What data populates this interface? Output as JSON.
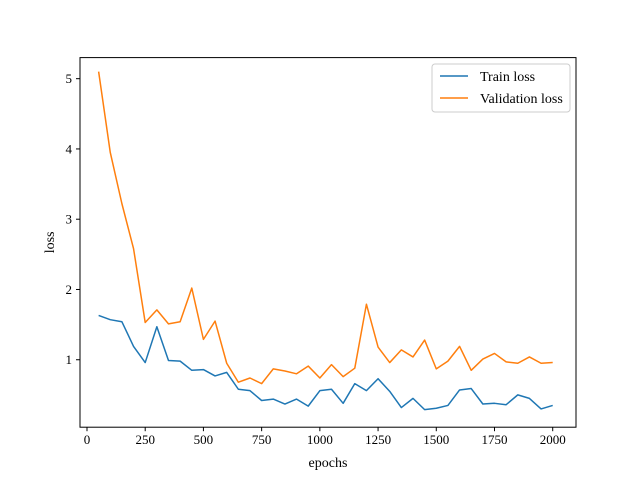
{
  "chart_data": {
    "type": "line",
    "xlabel": "epochs",
    "ylabel": "loss",
    "xlim": [
      -30,
      2100
    ],
    "ylim": [
      0.04,
      5.3
    ],
    "x_ticks": [
      0,
      250,
      500,
      750,
      1000,
      1250,
      1500,
      1750,
      2000
    ],
    "y_ticks": [
      1,
      2,
      3,
      4,
      5
    ],
    "grid": false,
    "legend_position": "top-right",
    "x": [
      50,
      100,
      150,
      200,
      250,
      300,
      350,
      400,
      450,
      500,
      550,
      600,
      650,
      700,
      750,
      800,
      850,
      900,
      950,
      1000,
      1050,
      1100,
      1150,
      1200,
      1250,
      1300,
      1350,
      1400,
      1450,
      1500,
      1550,
      1600,
      1650,
      1700,
      1750,
      1800,
      1850,
      1900,
      1950,
      2000
    ],
    "series": [
      {
        "name": "Train loss",
        "color": "#1f77b4",
        "values": [
          1.63,
          1.57,
          1.54,
          1.19,
          0.96,
          1.47,
          0.99,
          0.98,
          0.85,
          0.86,
          0.77,
          0.82,
          0.58,
          0.56,
          0.42,
          0.44,
          0.37,
          0.44,
          0.34,
          0.56,
          0.58,
          0.38,
          0.66,
          0.56,
          0.73,
          0.55,
          0.32,
          0.45,
          0.29,
          0.31,
          0.35,
          0.57,
          0.59,
          0.37,
          0.38,
          0.36,
          0.5,
          0.45,
          0.3,
          0.35
        ]
      },
      {
        "name": "Validation loss",
        "color": "#ff7f0e",
        "values": [
          5.1,
          3.95,
          3.22,
          2.58,
          1.53,
          1.71,
          1.51,
          1.54,
          2.02,
          1.29,
          1.55,
          0.95,
          0.68,
          0.74,
          0.66,
          0.87,
          0.84,
          0.8,
          0.91,
          0.74,
          0.93,
          0.76,
          0.88,
          1.79,
          1.18,
          0.96,
          1.14,
          1.04,
          1.28,
          0.87,
          0.98,
          1.19,
          0.85,
          1.01,
          1.09,
          0.97,
          0.95,
          1.04,
          0.95,
          0.96
        ]
      }
    ]
  }
}
